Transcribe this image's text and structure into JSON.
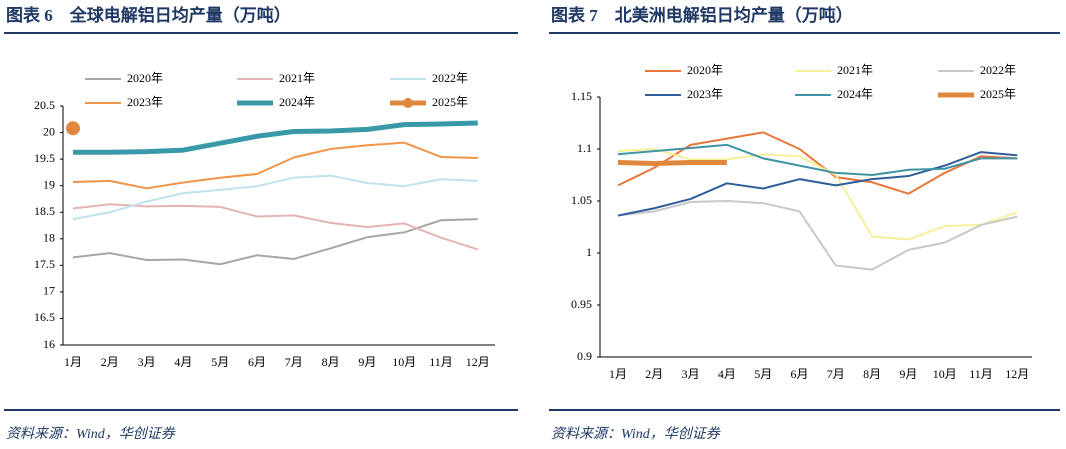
{
  "chart_data": [
    {
      "type": "line",
      "title": "图表 6　全球电解铝日均产量（万吨）",
      "source": "资料来源：Wind，华创证券",
      "categories": [
        "1月",
        "2月",
        "3月",
        "4月",
        "5月",
        "6月",
        "7月",
        "8月",
        "9月",
        "10月",
        "11月",
        "12月"
      ],
      "ylim": [
        16,
        20.5
      ],
      "yticks": [
        16,
        16.5,
        17,
        17.5,
        18,
        18.5,
        19,
        19.5,
        20,
        20.5
      ],
      "grid": false,
      "series": [
        {
          "name": "2020年",
          "color": "#a6a6a6",
          "line_width": 2,
          "values": [
            17.65,
            17.73,
            17.6,
            17.61,
            17.52,
            17.69,
            17.62,
            17.82,
            18.03,
            18.12,
            18.35,
            18.37
          ]
        },
        {
          "name": "2021年",
          "color": "#e6b3b3",
          "line_width": 2,
          "values": [
            18.57,
            18.65,
            18.61,
            18.62,
            18.6,
            18.42,
            18.44,
            18.3,
            18.22,
            18.29,
            18.02,
            17.8
          ]
        },
        {
          "name": "2022年",
          "color": "#bfe3ee",
          "line_width": 2,
          "values": [
            18.37,
            18.5,
            18.7,
            18.86,
            18.92,
            18.99,
            19.15,
            19.19,
            19.05,
            18.99,
            19.12,
            19.09
          ]
        },
        {
          "name": "2023年",
          "color": "#f0944a",
          "line_width": 2,
          "values": [
            19.07,
            19.09,
            18.95,
            19.06,
            19.15,
            19.22,
            19.53,
            19.69,
            19.76,
            19.81,
            19.54,
            19.52
          ]
        },
        {
          "name": "2024年",
          "color": "#3a99a8",
          "line_width": 5,
          "values": [
            19.63,
            19.63,
            19.64,
            19.67,
            19.8,
            19.93,
            20.02,
            20.03,
            20.06,
            20.15,
            20.16,
            20.18
          ]
        },
        {
          "name": "2025年",
          "color": "#e0873f",
          "line_width": 5,
          "marker": "circle",
          "values": [
            20.08,
            null,
            null,
            null,
            null,
            null,
            null,
            null,
            null,
            null,
            null,
            null
          ]
        }
      ]
    },
    {
      "type": "line",
      "title": "图表 7　北美洲电解铝日均产量（万吨）",
      "source": "资料来源：Wind，华创证券",
      "categories": [
        "1月",
        "2月",
        "3月",
        "4月",
        "5月",
        "6月",
        "7月",
        "8月",
        "9月",
        "10月",
        "11月",
        "12月"
      ],
      "ylim": [
        0.9,
        1.15
      ],
      "yticks": [
        0.9,
        0.95,
        1,
        1.05,
        1.1,
        1.15
      ],
      "grid": false,
      "series": [
        {
          "name": "2020年",
          "color": "#e8763a",
          "line_width": 2,
          "values": [
            1.065,
            1.082,
            1.104,
            1.11,
            1.116,
            1.1,
            1.073,
            1.068,
            1.057,
            1.077,
            1.093,
            1.091
          ]
        },
        {
          "name": "2021年",
          "color": "#f7ef99",
          "line_width": 2,
          "values": [
            1.098,
            1.1,
            1.09,
            1.09,
            1.095,
            1.093,
            1.075,
            1.016,
            1.013,
            1.026,
            1.027,
            1.039
          ]
        },
        {
          "name": "2022年",
          "color": "#c8c8c8",
          "line_width": 2,
          "values": [
            1.036,
            1.04,
            1.049,
            1.05,
            1.048,
            1.04,
            0.988,
            0.984,
            1.003,
            1.01,
            1.027,
            1.035
          ]
        },
        {
          "name": "2023年",
          "color": "#2e5f9a",
          "line_width": 2,
          "values": [
            1.036,
            1.043,
            1.052,
            1.067,
            1.062,
            1.071,
            1.065,
            1.071,
            1.074,
            1.084,
            1.097,
            1.094
          ]
        },
        {
          "name": "2024年",
          "color": "#3f93a3",
          "line_width": 2,
          "values": [
            1.095,
            1.098,
            1.101,
            1.104,
            1.091,
            1.084,
            1.077,
            1.075,
            1.08,
            1.081,
            1.091,
            1.091
          ]
        },
        {
          "name": "2025年",
          "color": "#e0873f",
          "line_width": 5,
          "values": [
            1.087,
            1.086,
            1.087,
            1.087,
            null,
            null,
            null,
            null,
            null,
            null,
            null,
            null
          ]
        }
      ]
    }
  ]
}
